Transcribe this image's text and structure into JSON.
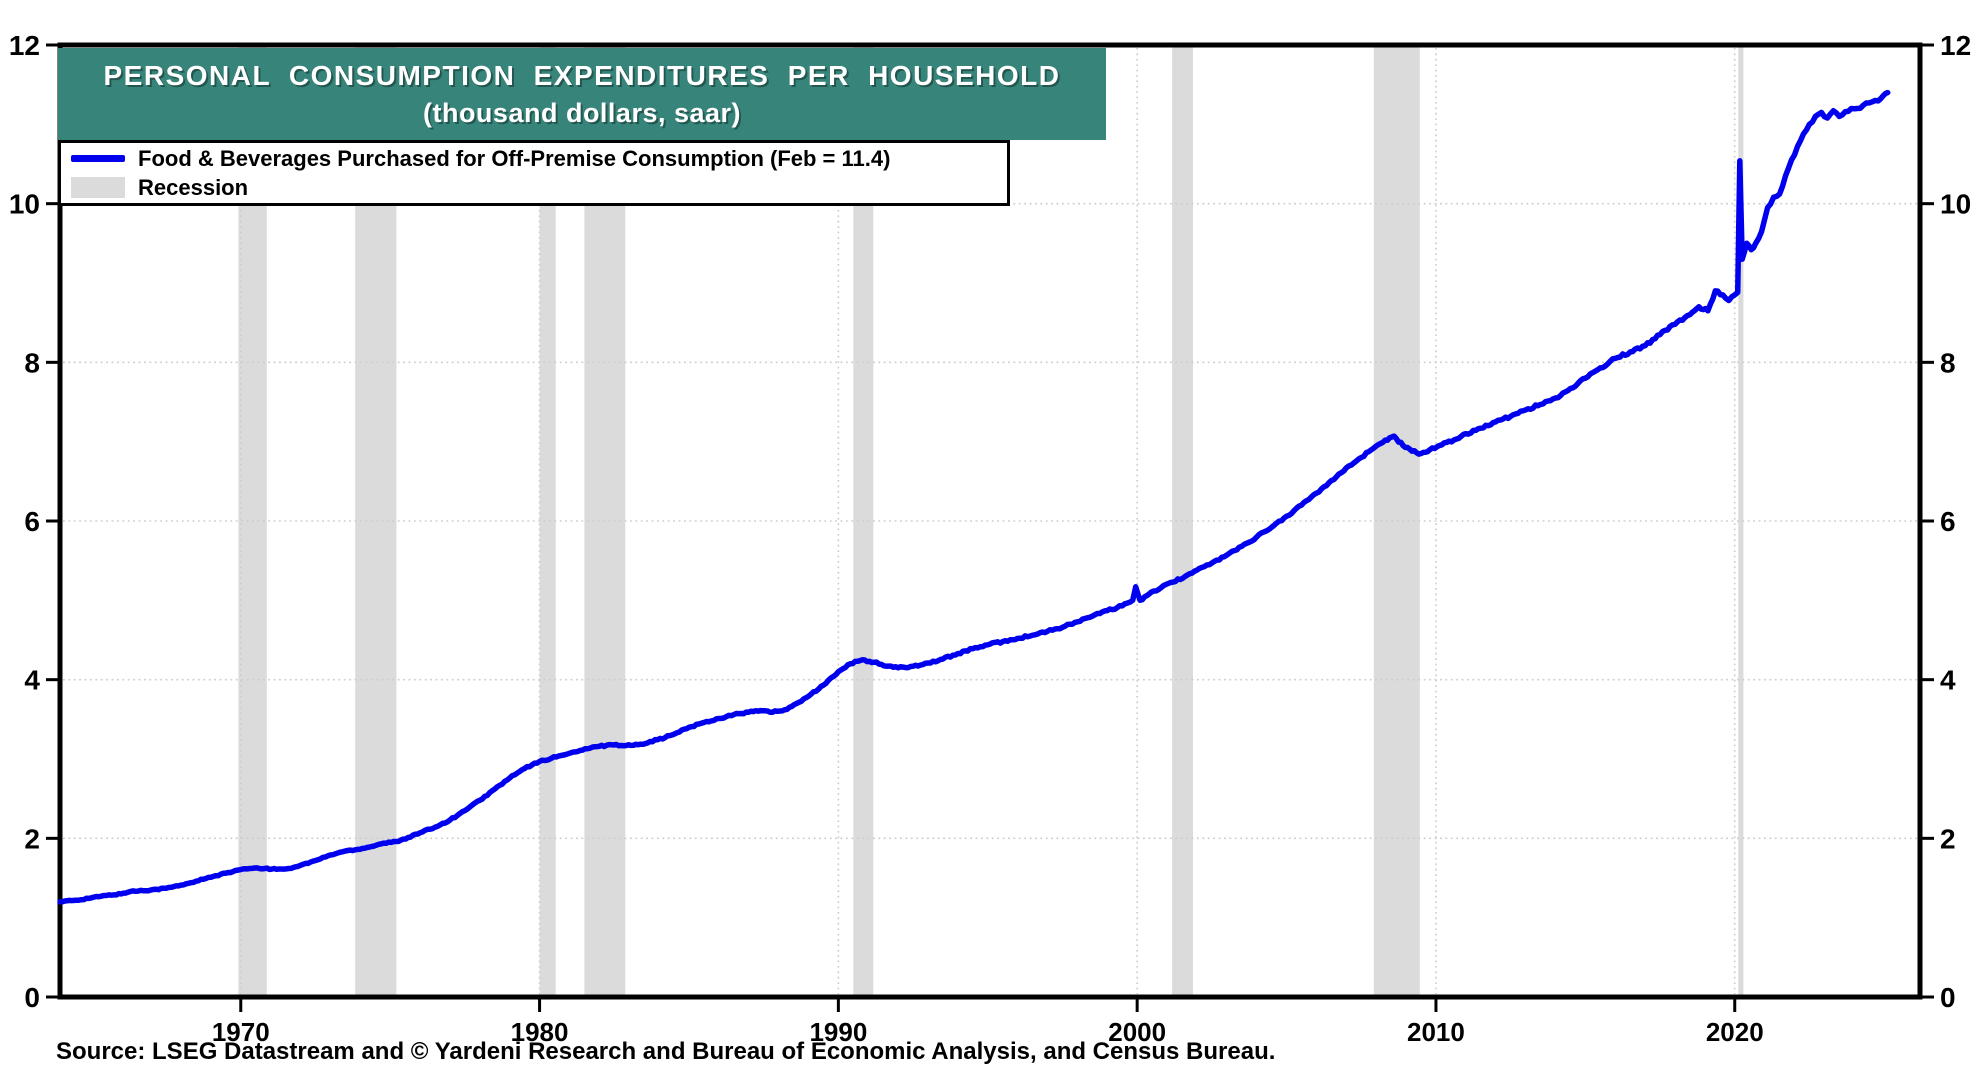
{
  "title": {
    "line1": "PERSONAL CONSUMPTION EXPENDITURES PER HOUSEHOLD",
    "line2": "(thousand dollars, saar)"
  },
  "legend": {
    "series_label": "Food & Beverages Purchased for Off-Premise Consumption (Feb = 11.4)",
    "recession_label": "Recession"
  },
  "source_note": "Source: LSEG Datastream and © Yardeni Research and Bureau of Economic Analysis, and Census Bureau.",
  "colors": {
    "series_line": "#0000EE",
    "recession_band": "#DBDBDB",
    "title_background": "#37857A",
    "title_text": "#FFFFFF",
    "grid": "#CDCDCD",
    "axis": "#000000",
    "tick_label": "#000000"
  },
  "chart_data": {
    "type": "line",
    "title": "PERSONAL CONSUMPTION EXPENDITURES PER HOUSEHOLD",
    "subtitle": "(thousand dollars, saar)",
    "ylabel": "thousand dollars, saar",
    "xlabel": "",
    "x_range": [
      1963.95,
      2026.2
    ],
    "y_range": [
      0,
      12
    ],
    "x_ticks": [
      1970,
      1980,
      1990,
      2000,
      2010,
      2020
    ],
    "y_ticks": [
      0,
      2,
      4,
      6,
      8,
      10,
      12
    ],
    "y_ticks_both_sides": true,
    "grid": "dotted",
    "legend_position": "top-left",
    "recessions": [
      [
        1969.92,
        1970.87
      ],
      [
        1973.83,
        1975.21
      ],
      [
        1980.0,
        1980.54
      ],
      [
        1981.5,
        1982.87
      ],
      [
        1990.5,
        1991.17
      ],
      [
        2001.17,
        2001.87
      ],
      [
        2007.92,
        2009.46
      ],
      [
        2020.12,
        2020.29
      ]
    ],
    "series": [
      {
        "name": "Food & Beverages Purchased for Off-Premise Consumption",
        "latest_label": "Feb = 11.4",
        "latest_value": 11.4,
        "points": [
          [
            1963.95,
            1.2
          ],
          [
            1964.5,
            1.22
          ],
          [
            1965.0,
            1.25
          ],
          [
            1965.5,
            1.28
          ],
          [
            1966.0,
            1.3
          ],
          [
            1966.3,
            1.33
          ],
          [
            1967.0,
            1.35
          ],
          [
            1967.5,
            1.37
          ],
          [
            1968.0,
            1.41
          ],
          [
            1968.5,
            1.46
          ],
          [
            1969.0,
            1.51
          ],
          [
            1969.5,
            1.56
          ],
          [
            1969.9,
            1.6
          ],
          [
            1970.3,
            1.62
          ],
          [
            1970.8,
            1.62
          ],
          [
            1971.2,
            1.61
          ],
          [
            1971.6,
            1.62
          ],
          [
            1972.0,
            1.66
          ],
          [
            1972.5,
            1.72
          ],
          [
            1973.0,
            1.79
          ],
          [
            1973.5,
            1.84
          ],
          [
            1973.9,
            1.86
          ],
          [
            1974.3,
            1.89
          ],
          [
            1974.7,
            1.93
          ],
          [
            1975.2,
            1.96
          ],
          [
            1975.6,
            2.01
          ],
          [
            1976.0,
            2.07
          ],
          [
            1976.5,
            2.14
          ],
          [
            1977.0,
            2.23
          ],
          [
            1977.5,
            2.35
          ],
          [
            1978.0,
            2.48
          ],
          [
            1978.5,
            2.62
          ],
          [
            1979.0,
            2.76
          ],
          [
            1979.5,
            2.88
          ],
          [
            1980.0,
            2.97
          ],
          [
            1980.4,
            3.01
          ],
          [
            1980.8,
            3.05
          ],
          [
            1981.2,
            3.09
          ],
          [
            1981.6,
            3.13
          ],
          [
            1982.0,
            3.16
          ],
          [
            1982.4,
            3.18
          ],
          [
            1982.9,
            3.17
          ],
          [
            1983.3,
            3.18
          ],
          [
            1983.7,
            3.22
          ],
          [
            1984.2,
            3.27
          ],
          [
            1984.6,
            3.33
          ],
          [
            1985.0,
            3.4
          ],
          [
            1985.5,
            3.46
          ],
          [
            1986.0,
            3.51
          ],
          [
            1986.5,
            3.56
          ],
          [
            1987.0,
            3.59
          ],
          [
            1987.4,
            3.61
          ],
          [
            1987.8,
            3.59
          ],
          [
            1988.2,
            3.62
          ],
          [
            1988.6,
            3.7
          ],
          [
            1989.0,
            3.79
          ],
          [
            1989.5,
            3.93
          ],
          [
            1990.0,
            4.1
          ],
          [
            1990.4,
            4.2
          ],
          [
            1990.8,
            4.25
          ],
          [
            1991.2,
            4.22
          ],
          [
            1991.6,
            4.17
          ],
          [
            1992.0,
            4.15
          ],
          [
            1992.5,
            4.17
          ],
          [
            1993.0,
            4.21
          ],
          [
            1993.5,
            4.26
          ],
          [
            1994.0,
            4.33
          ],
          [
            1994.5,
            4.39
          ],
          [
            1995.0,
            4.44
          ],
          [
            1995.5,
            4.48
          ],
          [
            1996.0,
            4.52
          ],
          [
            1996.5,
            4.56
          ],
          [
            1997.0,
            4.61
          ],
          [
            1997.5,
            4.66
          ],
          [
            1998.0,
            4.73
          ],
          [
            1998.5,
            4.8
          ],
          [
            1999.0,
            4.87
          ],
          [
            1999.5,
            4.93
          ],
          [
            1999.85,
            5.0
          ],
          [
            1999.95,
            5.17
          ],
          [
            2000.1,
            5.0
          ],
          [
            2000.4,
            5.08
          ],
          [
            2000.8,
            5.16
          ],
          [
            2001.2,
            5.23
          ],
          [
            2001.6,
            5.3
          ],
          [
            2002.0,
            5.38
          ],
          [
            2002.5,
            5.47
          ],
          [
            2003.0,
            5.57
          ],
          [
            2003.5,
            5.68
          ],
          [
            2004.0,
            5.8
          ],
          [
            2004.5,
            5.92
          ],
          [
            2005.0,
            6.06
          ],
          [
            2005.5,
            6.2
          ],
          [
            2006.0,
            6.35
          ],
          [
            2006.5,
            6.51
          ],
          [
            2007.0,
            6.67
          ],
          [
            2007.5,
            6.8
          ],
          [
            2007.92,
            6.92
          ],
          [
            2008.3,
            7.02
          ],
          [
            2008.6,
            7.07
          ],
          [
            2008.9,
            6.95
          ],
          [
            2009.2,
            6.88
          ],
          [
            2009.5,
            6.85
          ],
          [
            2009.8,
            6.9
          ],
          [
            2010.2,
            6.96
          ],
          [
            2010.6,
            7.02
          ],
          [
            2011.0,
            7.1
          ],
          [
            2011.5,
            7.17
          ],
          [
            2012.0,
            7.25
          ],
          [
            2012.5,
            7.32
          ],
          [
            2013.0,
            7.4
          ],
          [
            2013.5,
            7.47
          ],
          [
            2014.0,
            7.55
          ],
          [
            2014.5,
            7.67
          ],
          [
            2015.0,
            7.8
          ],
          [
            2015.5,
            7.93
          ],
          [
            2016.0,
            8.05
          ],
          [
            2016.5,
            8.13
          ],
          [
            2017.0,
            8.21
          ],
          [
            2017.5,
            8.35
          ],
          [
            2018.0,
            8.48
          ],
          [
            2018.5,
            8.6
          ],
          [
            2018.8,
            8.7
          ],
          [
            2019.1,
            8.65
          ],
          [
            2019.35,
            8.9
          ],
          [
            2019.6,
            8.85
          ],
          [
            2019.8,
            8.78
          ],
          [
            2020.0,
            8.85
          ],
          [
            2020.1,
            8.88
          ],
          [
            2020.17,
            10.54
          ],
          [
            2020.25,
            9.3
          ],
          [
            2020.4,
            9.5
          ],
          [
            2020.55,
            9.42
          ],
          [
            2020.7,
            9.5
          ],
          [
            2020.9,
            9.65
          ],
          [
            2021.1,
            9.95
          ],
          [
            2021.3,
            10.08
          ],
          [
            2021.5,
            10.12
          ],
          [
            2021.7,
            10.35
          ],
          [
            2021.9,
            10.55
          ],
          [
            2022.1,
            10.72
          ],
          [
            2022.3,
            10.88
          ],
          [
            2022.5,
            11.0
          ],
          [
            2022.7,
            11.1
          ],
          [
            2022.9,
            11.15
          ],
          [
            2023.1,
            11.08
          ],
          [
            2023.3,
            11.17
          ],
          [
            2023.5,
            11.1
          ],
          [
            2023.7,
            11.16
          ],
          [
            2023.9,
            11.2
          ],
          [
            2024.1,
            11.2
          ],
          [
            2024.3,
            11.24
          ],
          [
            2024.5,
            11.27
          ],
          [
            2024.7,
            11.3
          ],
          [
            2024.9,
            11.33
          ],
          [
            2025.12,
            11.4
          ]
        ]
      }
    ]
  }
}
